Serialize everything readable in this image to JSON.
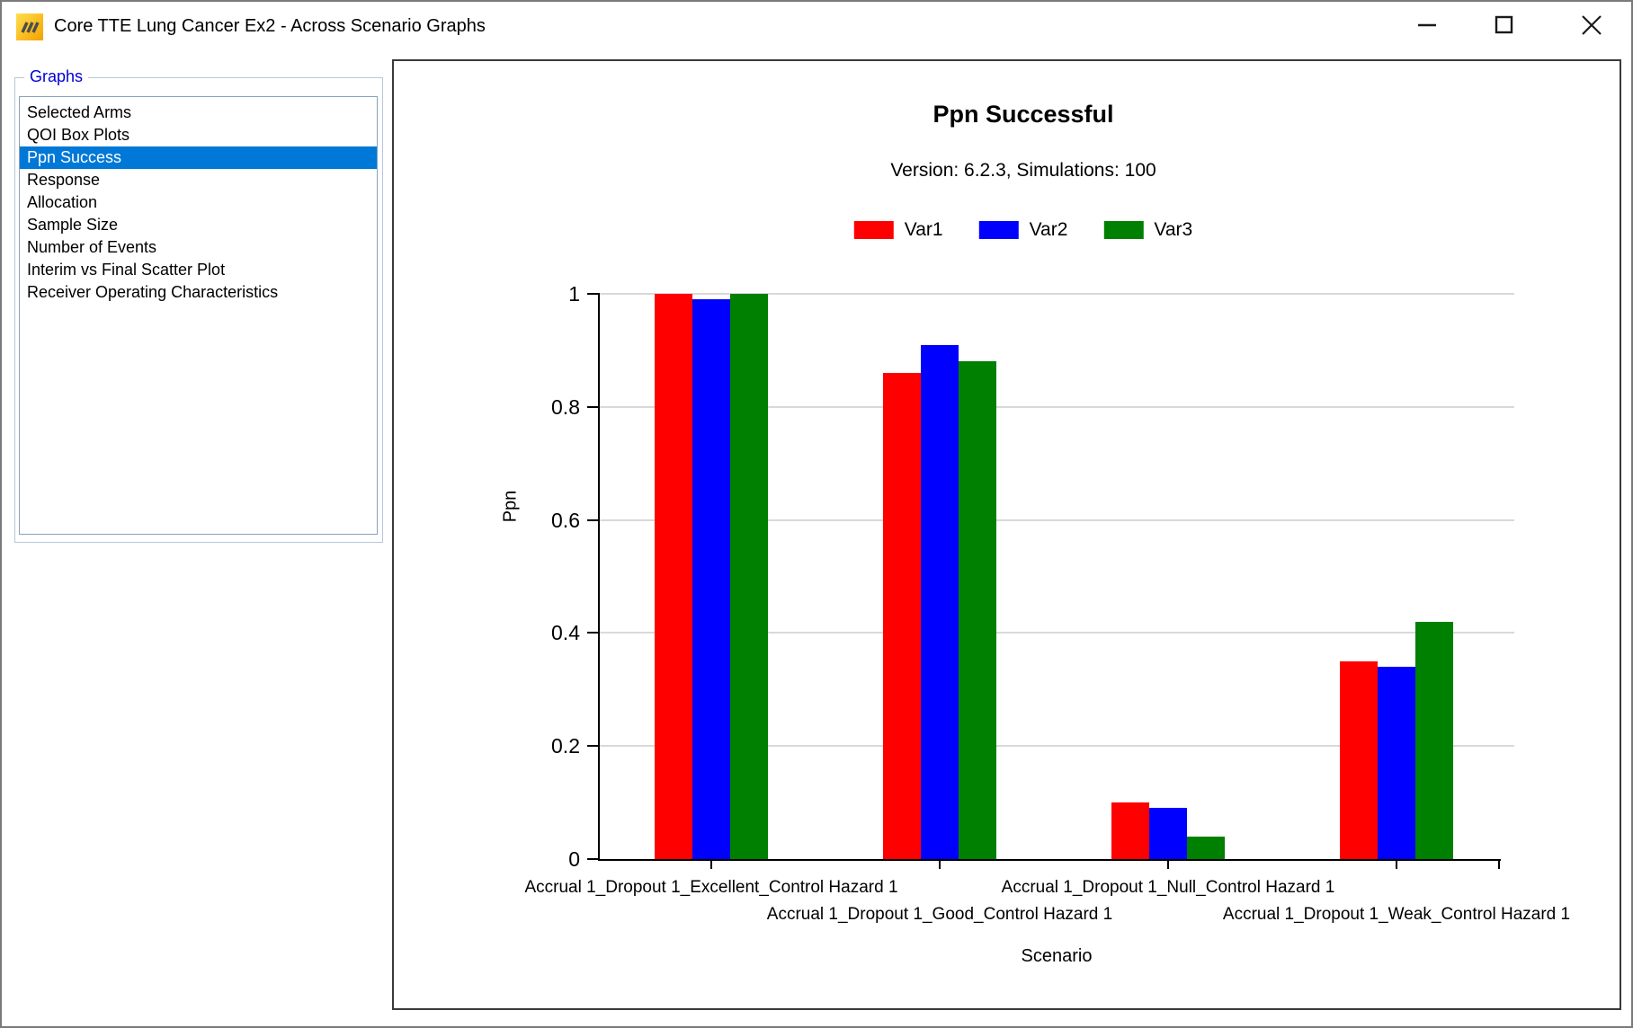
{
  "window": {
    "title": "Core TTE Lung Cancer Ex2 - Across Scenario Graphs",
    "icons": {
      "app": "app-icon",
      "minimize": "minimize-icon",
      "maximize": "maximize-icon",
      "close": "close-icon"
    }
  },
  "sidebar": {
    "group_label": "Graphs",
    "selection_color": "#0078d7",
    "label_color": "#0000d6",
    "items": [
      {
        "label": "Selected Arms",
        "selected": false
      },
      {
        "label": "QOI Box Plots",
        "selected": false
      },
      {
        "label": "Ppn Success",
        "selected": true
      },
      {
        "label": "Response",
        "selected": false
      },
      {
        "label": "Allocation",
        "selected": false
      },
      {
        "label": "Sample Size",
        "selected": false
      },
      {
        "label": "Number of Events",
        "selected": false
      },
      {
        "label": "Interim vs Final Scatter Plot",
        "selected": false
      },
      {
        "label": "Receiver Operating Characteristics",
        "selected": false
      }
    ]
  },
  "chart_data": {
    "type": "bar",
    "title": "Ppn Successful",
    "subtitle": "Version: 6.2.3, Simulations: 100",
    "xlabel": "Scenario",
    "ylabel": "Ppn",
    "ylim": [
      0,
      1
    ],
    "yticks": [
      0,
      0.2,
      0.4,
      0.6,
      0.8,
      1
    ],
    "grid": true,
    "grid_color": "#d9d9d9",
    "axis_color": "#000000",
    "legend_position": "top",
    "categories": [
      "Accrual 1_Dropout 1_Excellent_Control Hazard 1",
      "Accrual 1_Dropout 1_Good_Control Hazard 1",
      "Accrual 1_Dropout 1_Null_Control Hazard 1",
      "Accrual 1_Dropout 1_Weak_Control Hazard 1"
    ],
    "series": [
      {
        "name": "Var1",
        "color": "#ff0000",
        "values": [
          1.0,
          0.86,
          0.1,
          0.35
        ]
      },
      {
        "name": "Var2",
        "color": "#0000ff",
        "values": [
          0.99,
          0.91,
          0.09,
          0.34
        ]
      },
      {
        "name": "Var3",
        "color": "#008000",
        "values": [
          1.0,
          0.88,
          0.04,
          0.42
        ]
      }
    ]
  }
}
